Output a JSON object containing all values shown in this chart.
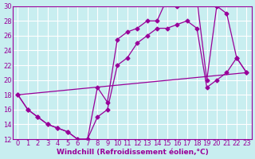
{
  "xlabel": "Windchill (Refroidissement éolien,°C)",
  "background_color": "#c8eef0",
  "line_color": "#990099",
  "grid_color": "#ffffff",
  "xlim": [
    -0.5,
    23.5
  ],
  "ylim": [
    12,
    30
  ],
  "xticks": [
    0,
    1,
    2,
    3,
    4,
    5,
    6,
    7,
    8,
    9,
    10,
    11,
    12,
    13,
    14,
    15,
    16,
    17,
    18,
    19,
    20,
    21,
    22,
    23
  ],
  "yticks": [
    12,
    14,
    16,
    18,
    20,
    22,
    24,
    26,
    28,
    30
  ],
  "line1_x": [
    0,
    1,
    2,
    3,
    4,
    5,
    6,
    7,
    8,
    9,
    10,
    11,
    12,
    13,
    14,
    15,
    16,
    17,
    18,
    19,
    20,
    21,
    22,
    23
  ],
  "line1_y": [
    18,
    16,
    15,
    14,
    13.5,
    13,
    12,
    12,
    15,
    16,
    22,
    23,
    25,
    26,
    27,
    27,
    27.5,
    28,
    27,
    19,
    20,
    21,
    23,
    21
  ],
  "line2_x": [
    0,
    1,
    2,
    3,
    4,
    5,
    6,
    7,
    8,
    9,
    10,
    11,
    12,
    13,
    14,
    15,
    16,
    17,
    18,
    19,
    20,
    21,
    22,
    23
  ],
  "line2_y": [
    18,
    16,
    15,
    14,
    13.5,
    13,
    12,
    12,
    19,
    17,
    25.5,
    26.5,
    27,
    28,
    28,
    31,
    30,
    31,
    31,
    20,
    30,
    29,
    23,
    21
  ],
  "line3_x": [
    0,
    23
  ],
  "line3_y": [
    18,
    21
  ],
  "marker": "D",
  "markersize": 2.5,
  "fontsize_label": 6.5,
  "fontsize_tick": 6
}
